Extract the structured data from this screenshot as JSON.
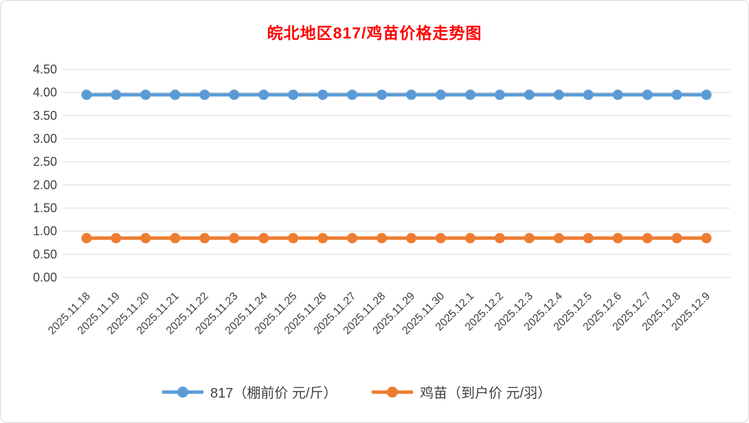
{
  "chart_data": {
    "type": "line",
    "title": "皖北地区817/鸡苗价格走势图",
    "title_color": "#FF0000",
    "xlabel": "",
    "ylabel": "",
    "ylim": [
      0,
      4.5
    ],
    "ytick_step": 0.5,
    "grid": true,
    "legend_position": "bottom",
    "categories": [
      "2025.11.18",
      "2025.11.19",
      "2025.11.20",
      "2025.11.21",
      "2025.11.22",
      "2025.11.23",
      "2025.11.24",
      "2025.11.25",
      "2025.11.26",
      "2025.11.27",
      "2025.11.28",
      "2025.11.29",
      "2025.11.30",
      "2025.12.1",
      "2025.12.2",
      "2025.12.3",
      "2025.12.4",
      "2025.12.5",
      "2025.12.6",
      "2025.12.7",
      "2025.12.8",
      "2025.12.9"
    ],
    "series": [
      {
        "name": "817（棚前价 元/斤）",
        "color": "#5B9BD5",
        "values": [
          3.95,
          3.95,
          3.95,
          3.95,
          3.95,
          3.95,
          3.95,
          3.95,
          3.95,
          3.95,
          3.95,
          3.95,
          3.95,
          3.95,
          3.95,
          3.95,
          3.95,
          3.95,
          3.95,
          3.95,
          3.95,
          3.95
        ]
      },
      {
        "name": "鸡苗（到户价 元/羽）",
        "color": "#ED7D31",
        "values": [
          0.85,
          0.85,
          0.85,
          0.85,
          0.85,
          0.85,
          0.85,
          0.85,
          0.85,
          0.85,
          0.85,
          0.85,
          0.85,
          0.85,
          0.85,
          0.85,
          0.85,
          0.85,
          0.85,
          0.85,
          0.85,
          0.85
        ]
      }
    ],
    "grid_color": "#d9d9d9",
    "axis_text_color": "#404040"
  }
}
